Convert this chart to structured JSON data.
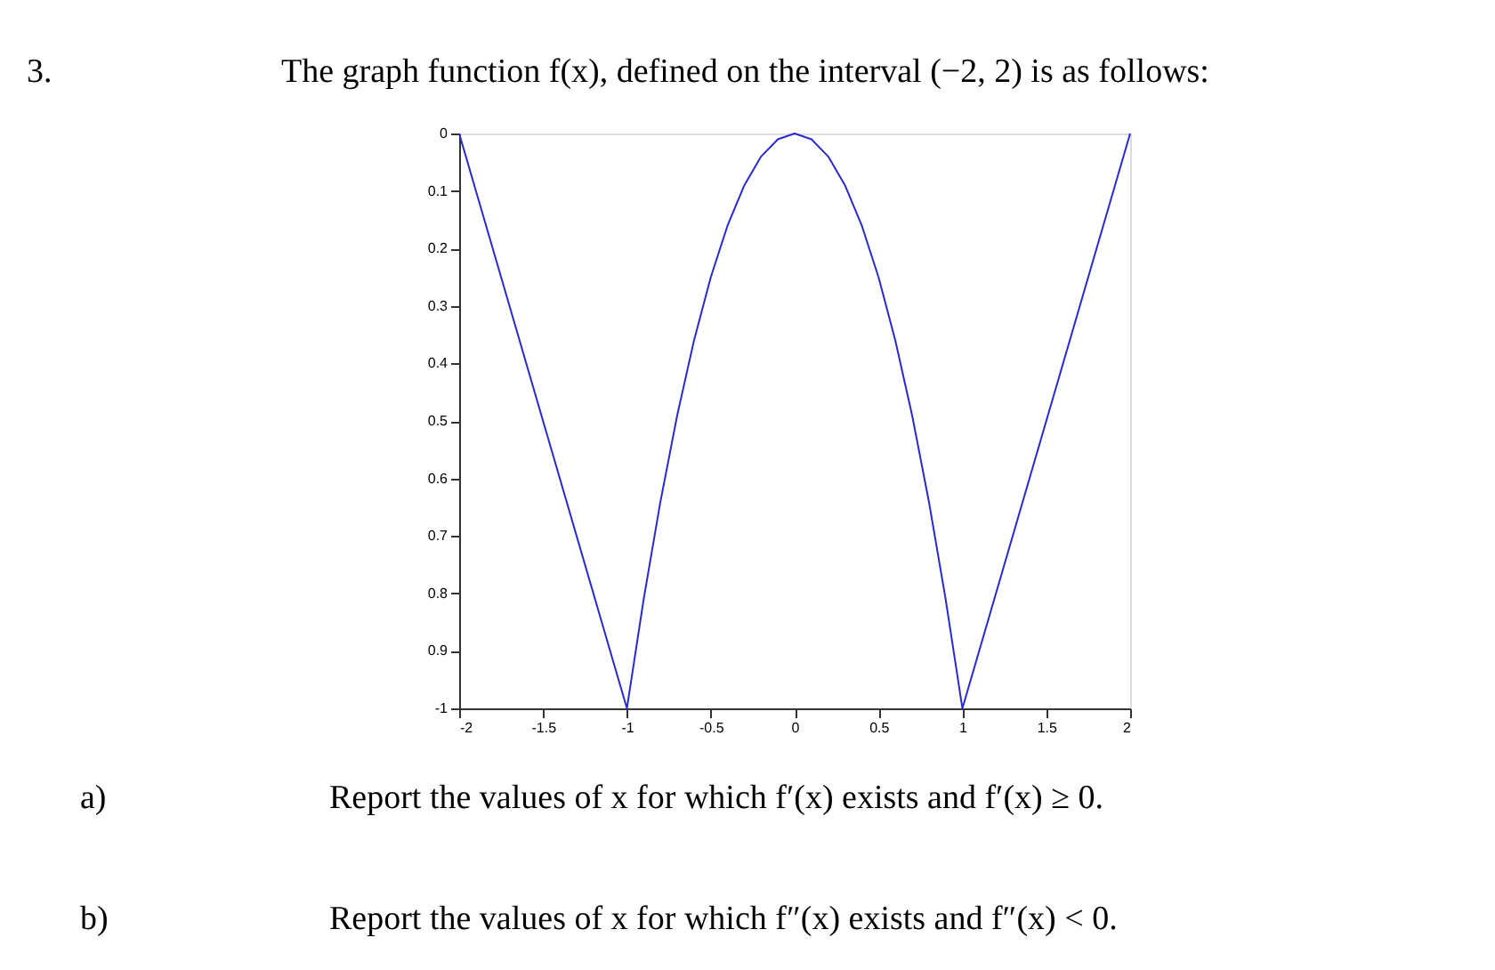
{
  "chart_data": {
    "type": "line",
    "title": "The graph function f(x), defined on the interval (−2, 2) is as follows:",
    "x": [
      -2,
      -1,
      -0.9,
      -0.8,
      -0.7,
      -0.6,
      -0.5,
      -0.4,
      -0.3,
      -0.2,
      -0.1,
      0,
      0.1,
      0.2,
      0.3,
      0.4,
      0.5,
      0.6,
      0.7,
      0.8,
      0.9,
      1,
      2
    ],
    "series": [
      {
        "color": "#2a2ad0",
        "values": [
          0,
          -1,
          -0.81,
          -0.64,
          -0.49,
          -0.36,
          -0.25,
          -0.16,
          -0.09,
          -0.04,
          -0.01,
          0,
          -0.01,
          -0.04,
          -0.09,
          -0.16,
          -0.25,
          -0.36,
          -0.49,
          -0.64,
          -0.81,
          -1,
          0
        ]
      }
    ],
    "xlim": [
      -2,
      2
    ],
    "xticks": [
      -2,
      -1.5,
      -1,
      -0.5,
      0,
      0.5,
      1,
      1.5,
      2
    ],
    "ylim": [
      -1,
      0
    ],
    "yticks": [
      0,
      {
        "value": -0.1,
        "label": "0.1"
      },
      {
        "value": -0.2,
        "label": "0.2"
      },
      {
        "value": -0.3,
        "label": "0.3"
      },
      {
        "value": -0.4,
        "label": "0.4"
      },
      {
        "value": -0.5,
        "label": "0.5"
      },
      {
        "value": -0.6,
        "label": "0.6"
      },
      {
        "value": -0.7,
        "label": "0.7"
      },
      {
        "value": -0.8,
        "label": "0.8"
      },
      {
        "value": -0.9,
        "label": "0.9"
      },
      -1
    ],
    "grid": false,
    "marker": "none",
    "line_style": "solid",
    "annotations": [
      "3.",
      "a)",
      "Report the values of x for which f′(x) exists and f′(x) ≥ 0.",
      "b)",
      "Report the values of x for which f″(x) exists and f″(x) < 0."
    ]
  }
}
